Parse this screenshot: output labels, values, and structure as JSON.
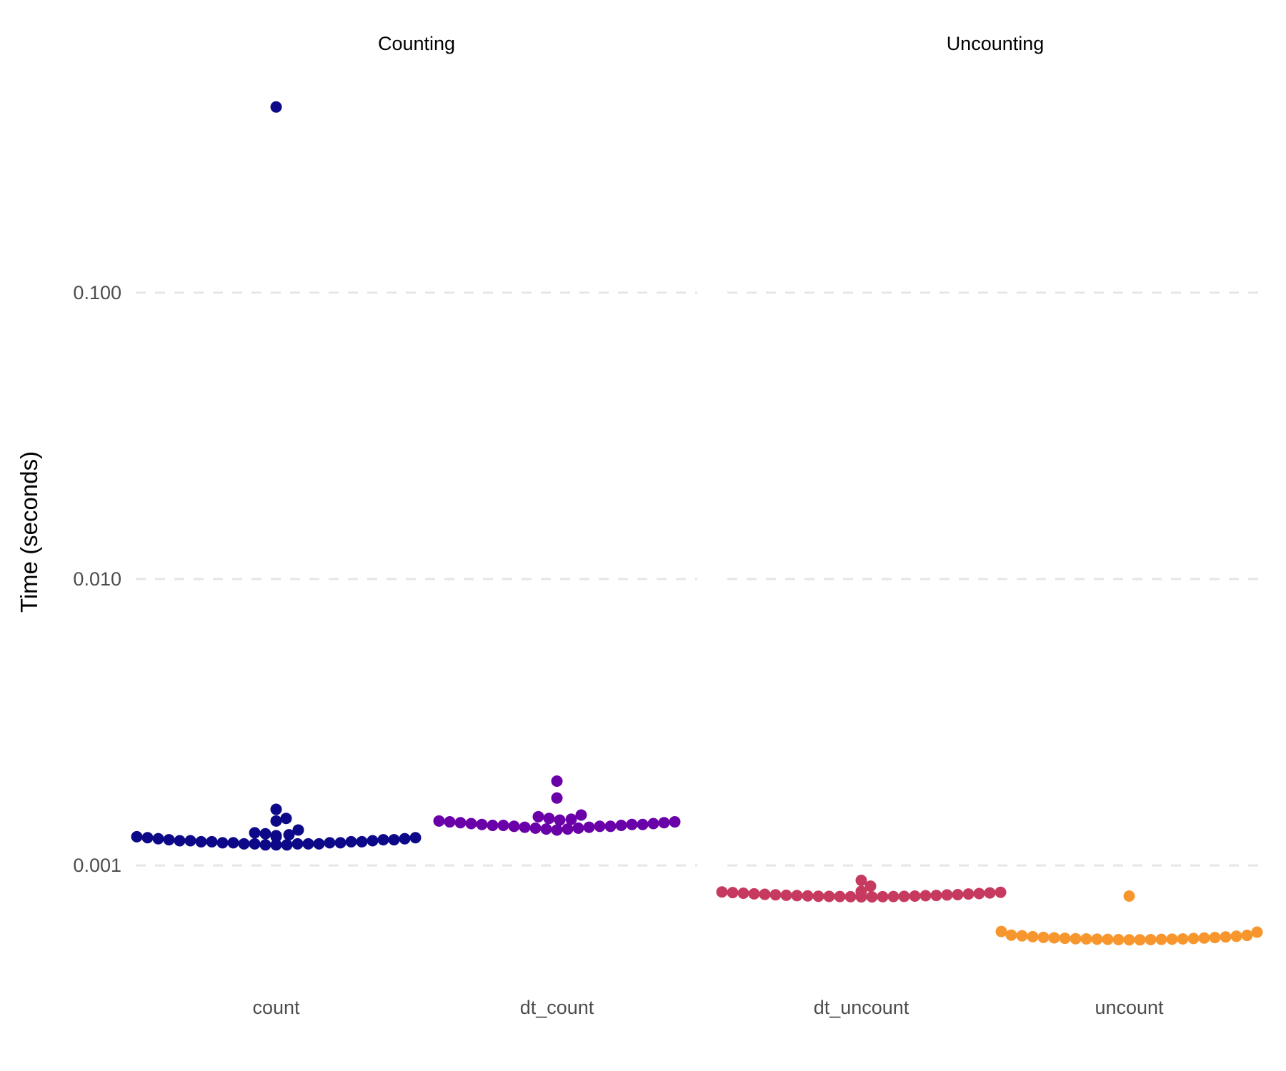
{
  "chart_data": {
    "type": "scatter",
    "subtype": "beeswarm",
    "title": "",
    "xlabel": "",
    "ylabel": "Time (seconds)",
    "y_scale": "log10",
    "ylim": [
      0.00048,
      0.528
    ],
    "grid": "horizontal dashed major gridlines",
    "y_ticks": [
      0.001,
      0.01,
      0.1
    ],
    "y_tick_labels": [
      "0.001",
      "0.010",
      "0.100"
    ],
    "legend": "none",
    "panels": [
      {
        "strip_label": "Counting",
        "groups": [
          {
            "category": "count",
            "color": "#0d0887",
            "values": [
              0.445,
              0.00157,
              0.00146,
              0.00143,
              0.00133,
              0.0013,
              0.00129,
              0.00128,
              0.00127,
              0.00127,
              0.00126,
              0.00126,
              0.00125,
              0.00125,
              0.00124,
              0.00124,
              0.00123,
              0.00123,
              0.00123,
              0.00122,
              0.00122,
              0.00122,
              0.00121,
              0.00121,
              0.00121,
              0.00121,
              0.0012,
              0.0012,
              0.0012,
              0.0012,
              0.00119,
              0.00119,
              0.00119,
              0.00119,
              0.00119,
              0.00118,
              0.00118,
              0.00118
            ]
          },
          {
            "category": "dt_count",
            "color": "#6a00a8",
            "values": [
              0.00197,
              0.00172,
              0.0015,
              0.00148,
              0.00146,
              0.00145,
              0.00144,
              0.00143,
              0.00142,
              0.00142,
              0.00141,
              0.00141,
              0.0014,
              0.0014,
              0.00139,
              0.00139,
              0.00139,
              0.00138,
              0.00138,
              0.00138,
              0.00137,
              0.00137,
              0.00137,
              0.00136,
              0.00136,
              0.00135,
              0.00135,
              0.00134,
              0.00134,
              0.00133
            ]
          }
        ]
      },
      {
        "strip_label": "Uncounting",
        "groups": [
          {
            "category": "dt_uncount",
            "color": "#c73a5f",
            "values": [
              0.000887,
              0.000847,
              0.000812,
              0.000811,
              0.00081,
              0.000808,
              0.000806,
              0.000804,
              0.000802,
              0.0008,
              0.000798,
              0.000796,
              0.000795,
              0.000793,
              0.000791,
              0.00079,
              0.000789,
              0.000787,
              0.000786,
              0.000785,
              0.000784,
              0.000783,
              0.000782,
              0.000781,
              0.00078,
              0.00078,
              0.000779,
              0.000779,
              0.000778,
              0.000778,
              0.000777,
              0.000777
            ]
          },
          {
            "category": "uncount",
            "color": "#f8962e",
            "values": [
              0.000782,
              0.000588,
              0.000585,
              0.000571,
              0.00057,
              0.000568,
              0.000566,
              0.000564,
              0.000563,
              0.000561,
              0.00056,
              0.000559,
              0.000558,
              0.000557,
              0.000556,
              0.000555,
              0.000554,
              0.000554,
              0.000553,
              0.000553,
              0.000552,
              0.000552,
              0.000551,
              0.000551,
              0.00055,
              0.00055
            ]
          }
        ]
      }
    ]
  }
}
